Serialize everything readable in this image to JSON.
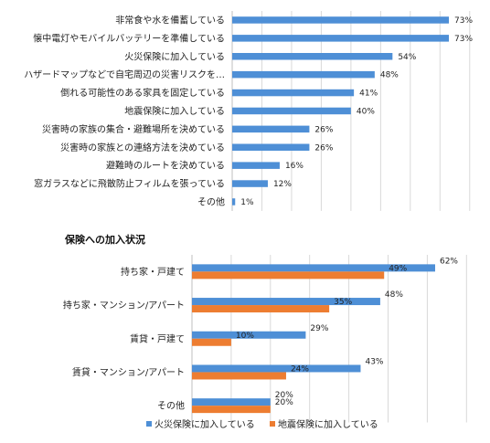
{
  "chart_data": [
    {
      "type": "bar",
      "orientation": "horizontal",
      "title": "",
      "categories": [
        "非常食や水を備蓄している",
        "懐中電灯やモバイルバッテリーを準備している",
        "火災保険に加入している",
        "ハザードマップなどで自宅周辺の災害リスクを…",
        "倒れる可能性のある家具を固定している",
        "地震保険に加入している",
        "災害時の家族の集合・避難場所を決めている",
        "災害時の家族との連絡方法を決めている",
        "避難時のルートを決めている",
        "窓ガラスなどに飛散防止フィルムを張っている",
        "その他"
      ],
      "values": [
        73,
        73,
        54,
        48,
        41,
        40,
        26,
        26,
        16,
        12,
        1
      ],
      "value_labels": [
        "73%",
        "73%",
        "54%",
        "48%",
        "41%",
        "40%",
        "26%",
        "26%",
        "16%",
        "12%",
        "1%"
      ],
      "xlim": [
        0,
        80
      ],
      "grid": true,
      "color": "#4e8fd6"
    },
    {
      "type": "bar",
      "orientation": "horizontal",
      "title": "保険への加入状況",
      "categories": [
        "持ち家・戸建て",
        "持ち家・マンション/アパート",
        "賃貸・戸建て",
        "賃貸・マンション/アパート",
        "その他"
      ],
      "series": [
        {
          "name": "火災保険に加入している",
          "values": [
            62,
            48,
            29,
            43,
            20
          ],
          "value_labels": [
            "62%",
            "48%",
            "29%",
            "43%",
            "20%"
          ],
          "color": "#4e8fd6"
        },
        {
          "name": "地震保険に加入している",
          "values": [
            49,
            35,
            10,
            24,
            20
          ],
          "value_labels": [
            "49%",
            "35%",
            "10%",
            "24%",
            "20%"
          ],
          "color": "#ed7d31"
        }
      ],
      "xlim": [
        0,
        70
      ],
      "grid": true,
      "legend": "bottom"
    }
  ]
}
